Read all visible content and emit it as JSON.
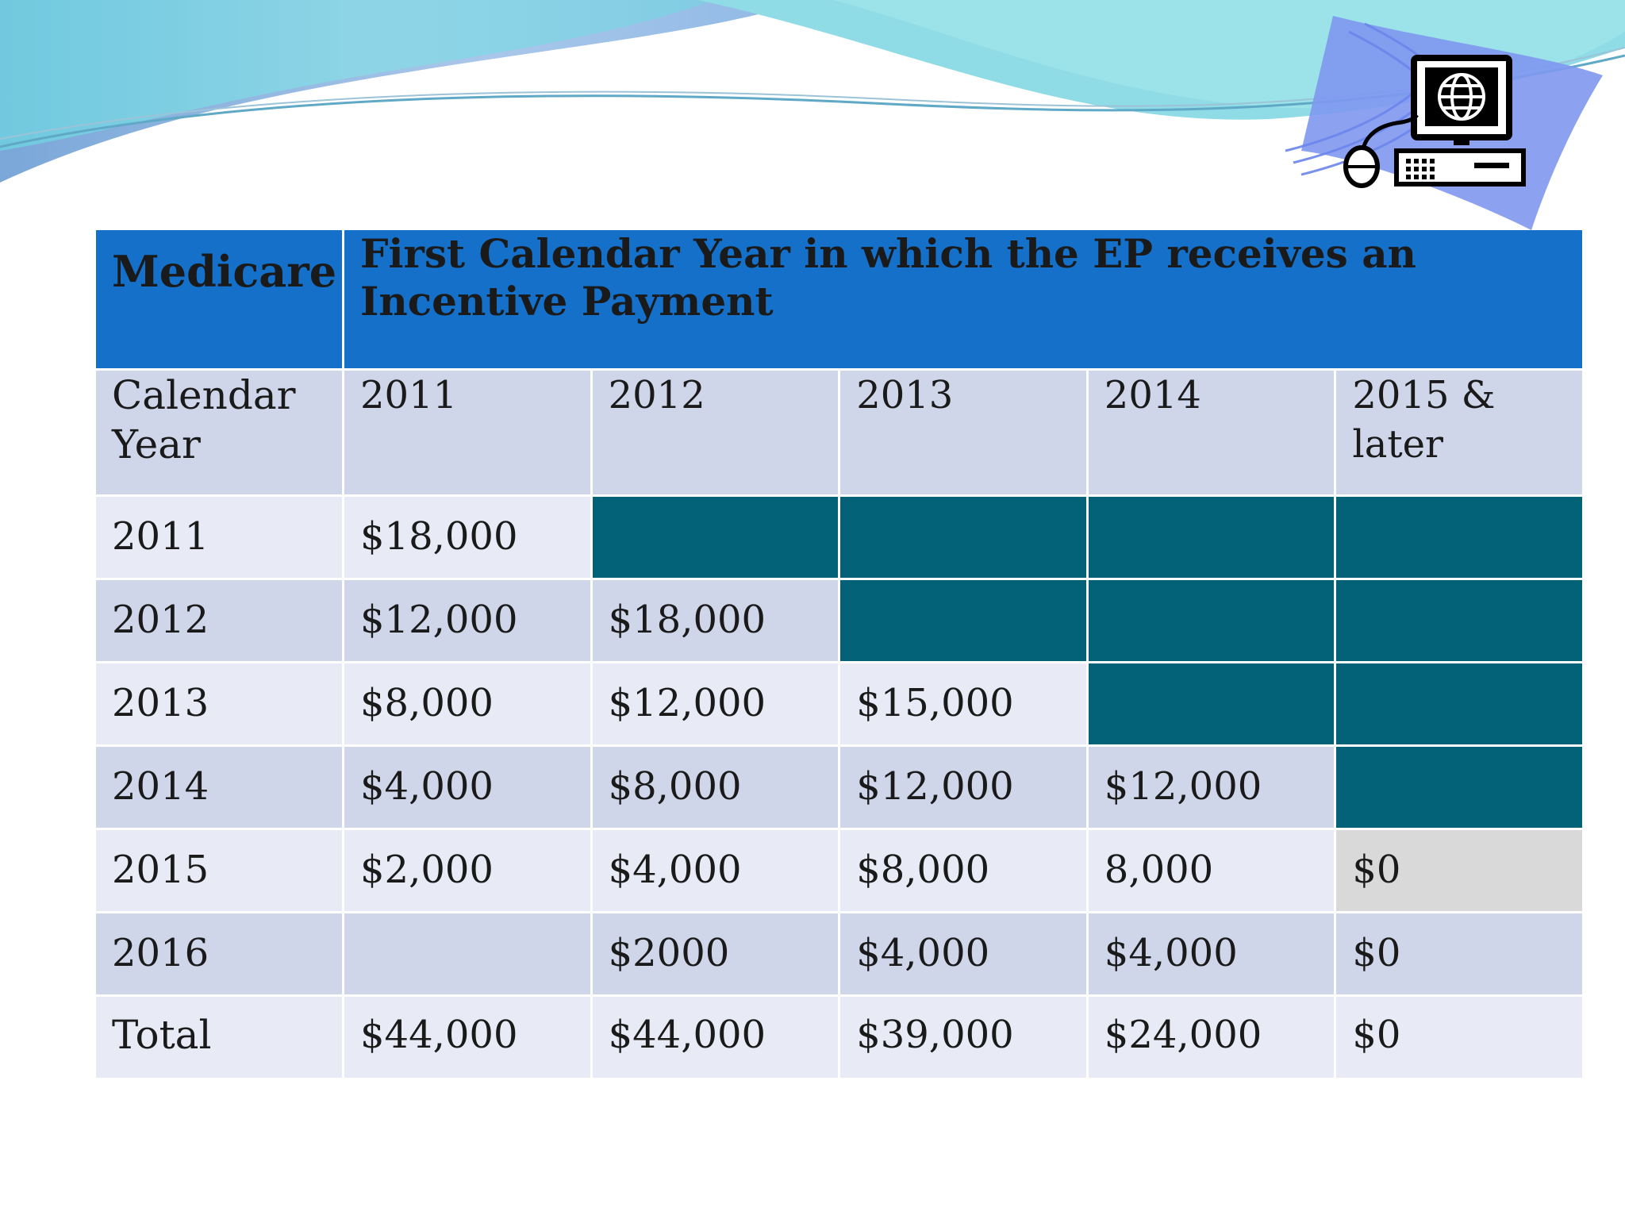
{
  "table": {
    "header": {
      "medicare": "Medicare",
      "title": "First Calendar Year in which the EP receives an Incentive Payment"
    },
    "year_row": {
      "label": "Calendar Year",
      "years": [
        "2011",
        "2012",
        "2013",
        "2014",
        "2015 &  later"
      ]
    },
    "rows": [
      {
        "label": "2011",
        "cells": [
          "$18,000",
          "",
          "",
          "",
          ""
        ]
      },
      {
        "label": "2012",
        "cells": [
          "$12,000",
          "$18,000",
          "",
          "",
          ""
        ]
      },
      {
        "label": "2013",
        "cells": [
          "$8,000",
          "$12,000",
          "$15,000",
          "",
          ""
        ]
      },
      {
        "label": "2014",
        "cells": [
          "$4,000",
          "$8,000",
          "$12,000",
          "$12,000",
          ""
        ]
      },
      {
        "label": "2015",
        "cells": [
          "$2,000",
          "$4,000",
          "$8,000",
          "8,000",
          "$0"
        ]
      },
      {
        "label": "2016",
        "cells": [
          "",
          "$2000",
          "$4,000",
          "$4,000",
          "$0"
        ]
      }
    ],
    "total": {
      "label": "Total",
      "cells": [
        "$44,000",
        "$44,000",
        "$39,000",
        "$24,000",
        "$0"
      ]
    }
  },
  "colors": {
    "header_blue": "#1470c8",
    "row_dark": "#cfd6e9",
    "row_light": "#e8ebf5",
    "teal_fill": "#036178",
    "grey_fill": "#d9d9d9"
  },
  "icons": [
    "computer-icon",
    "globe-icon",
    "mouse-icon",
    "keyboard-icon"
  ]
}
